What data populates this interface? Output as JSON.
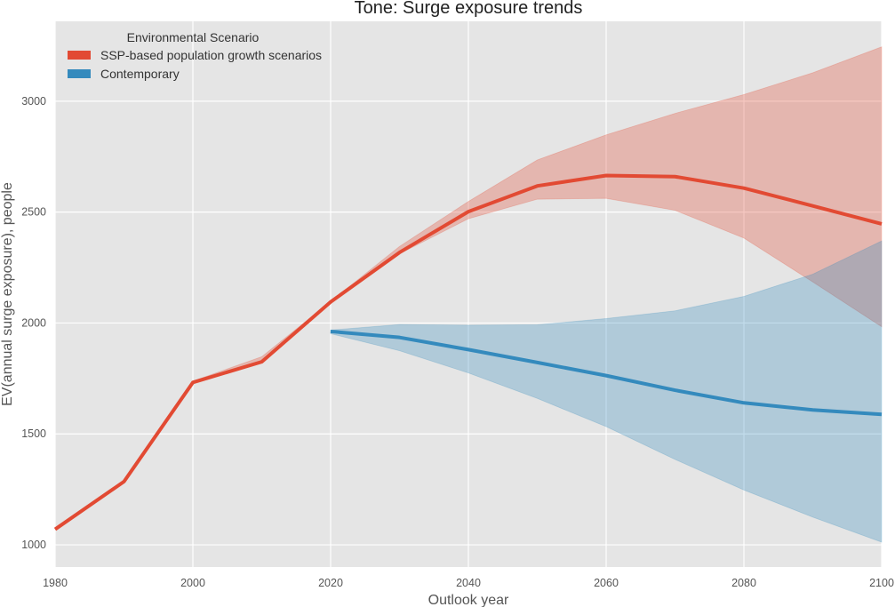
{
  "chart_data": {
    "type": "line",
    "title": "Tone: Surge exposure trends",
    "xlabel": "Outlook year",
    "ylabel": "EV(annual surge exposure), people",
    "xlim": [
      1980,
      2100
    ],
    "ylim": [
      1000,
      3000
    ],
    "plot_ylim": [
      900,
      3360
    ],
    "x_ticks": [
      1980,
      2000,
      2020,
      2040,
      2060,
      2080,
      2100
    ],
    "y_ticks": [
      1000,
      1500,
      2000,
      2500,
      3000
    ],
    "grid": true,
    "legend": {
      "title": "Environmental Scenario",
      "placement": "top-left",
      "entries": [
        "SSP-based population growth scenarios",
        "Contemporary"
      ]
    },
    "colors": {
      "ssp": "#E24A33",
      "contemporary": "#348ABD",
      "plot_background": "#E5E5E5",
      "grid": "#FFFFFF"
    },
    "series": [
      {
        "name": "SSP-based population growth scenarios",
        "color": "#E24A33",
        "x": [
          1980,
          1990,
          2000,
          2010,
          2020,
          2030,
          2040,
          2050,
          2060,
          2070,
          2080,
          2090,
          2100
        ],
        "values": [
          1070,
          1285,
          1732,
          1825,
          2095,
          2318,
          2502,
          2618,
          2665,
          2660,
          2608,
          2528,
          2447
        ],
        "lower": [
          1070,
          1285,
          1732,
          1820,
          2095,
          2312,
          2470,
          2558,
          2562,
          2508,
          2383,
          2185,
          1983
        ],
        "upper": [
          1070,
          1285,
          1738,
          1848,
          2097,
          2345,
          2548,
          2735,
          2848,
          2945,
          3030,
          3128,
          3245
        ]
      },
      {
        "name": "Contemporary",
        "color": "#348ABD",
        "x": [
          2020,
          2030,
          2040,
          2050,
          2060,
          2070,
          2080,
          2090,
          2100
        ],
        "values": [
          1962,
          1935,
          1880,
          1822,
          1763,
          1697,
          1640,
          1608,
          1588
        ],
        "lower": [
          1952,
          1875,
          1775,
          1660,
          1533,
          1385,
          1247,
          1125,
          1012
        ],
        "upper": [
          1968,
          1993,
          1990,
          1992,
          2020,
          2055,
          2120,
          2220,
          2370
        ]
      }
    ]
  }
}
